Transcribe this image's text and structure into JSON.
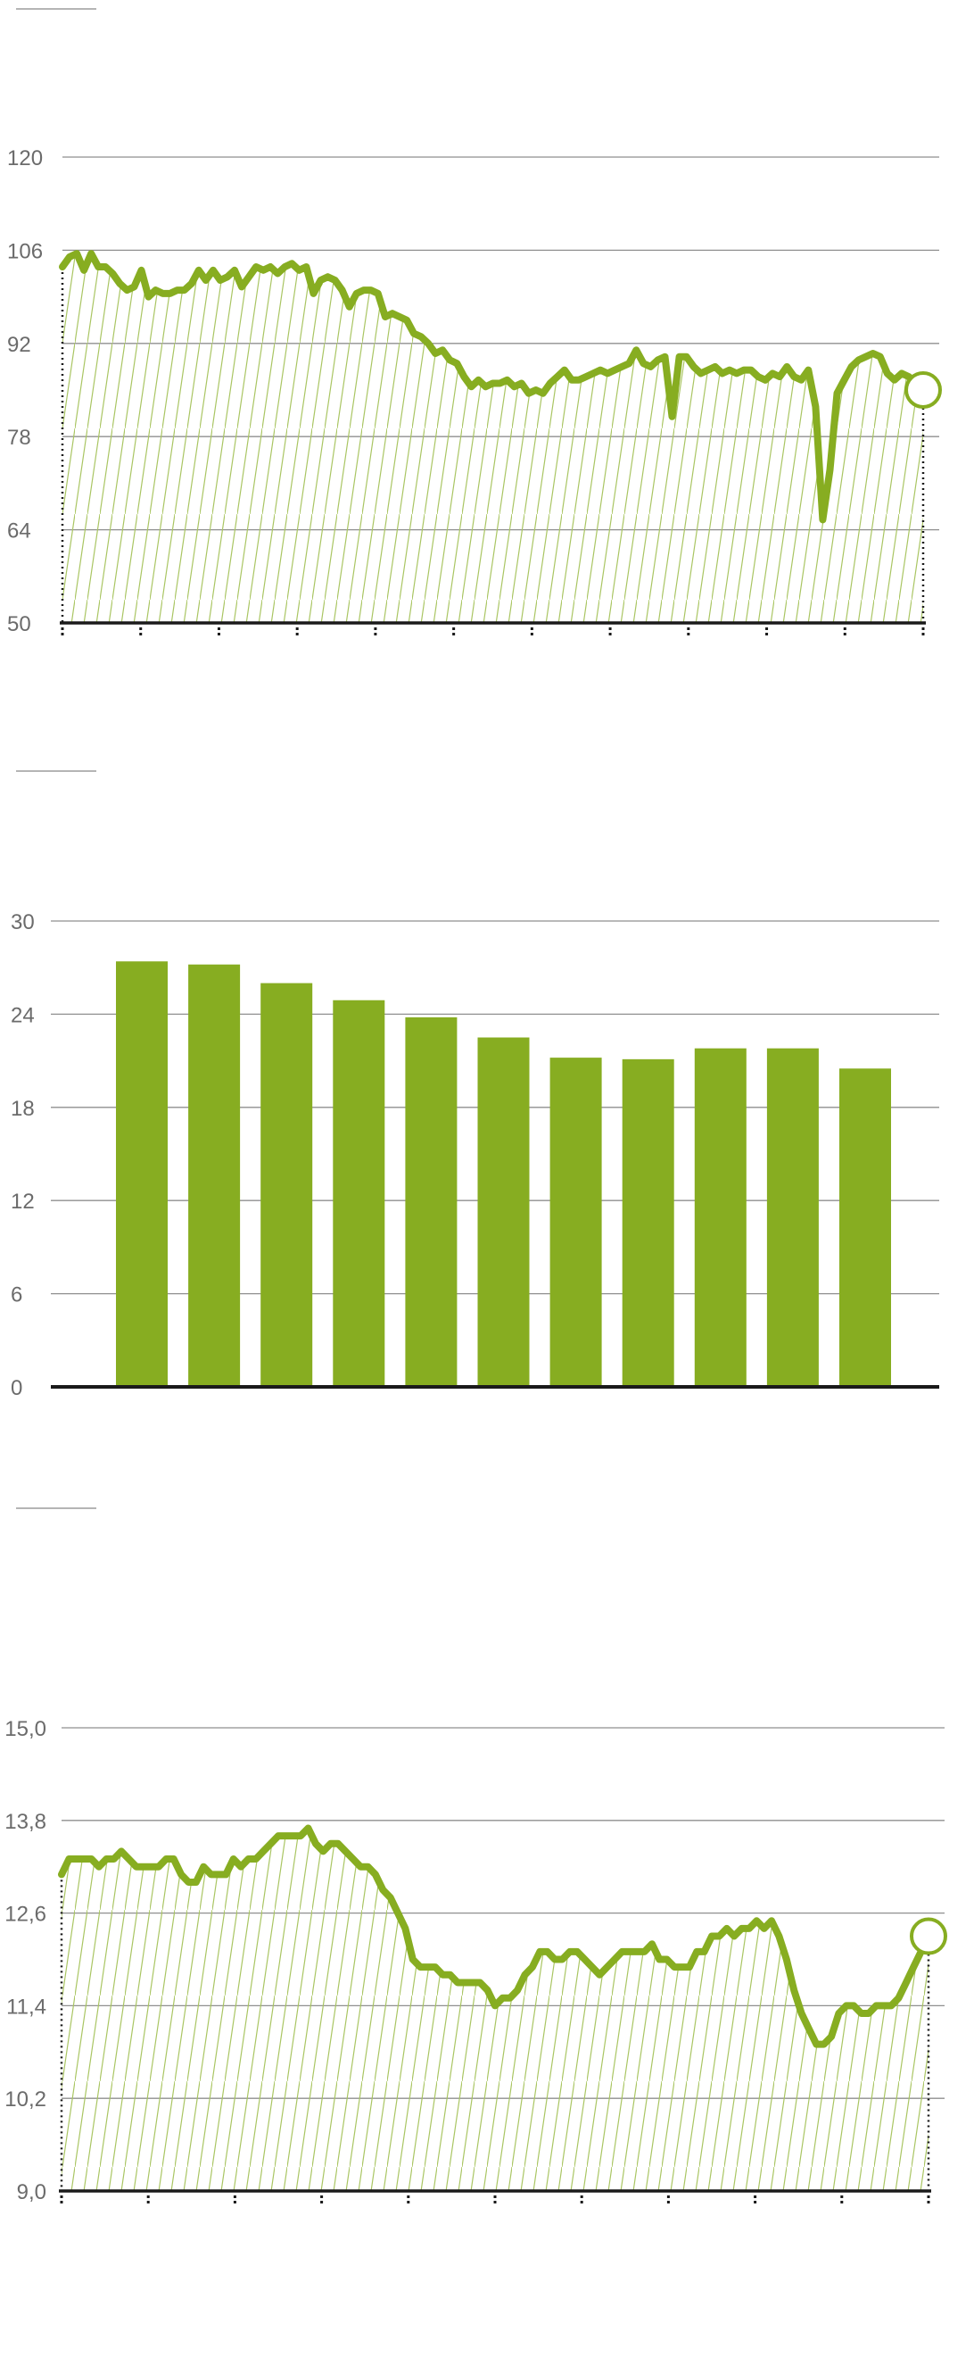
{
  "colors": {
    "series": "#87ad21",
    "hatch": "#a9c562",
    "grid": "#8f8f8f",
    "axis": "#1a1a1a",
    "tick_text": "#6b6b6b",
    "deco_line": "#b5b5b5"
  },
  "chart_data": [
    {
      "type": "area",
      "title": "",
      "xlabel": "",
      "ylabel": "",
      "ylim": [
        50,
        120
      ],
      "y_ticks": [
        "50",
        "64",
        "78",
        "92",
        "106",
        "120"
      ],
      "grid": true,
      "x_tick_count": 12,
      "end_marker": "open-circle",
      "series": [
        {
          "values": [
            103.5,
            105,
            105.5,
            103,
            105.5,
            103.5,
            103.5,
            102.5,
            101,
            100,
            100.5,
            103,
            99,
            100,
            99.5,
            99.5,
            100,
            100,
            101,
            103,
            101.5,
            103,
            101.5,
            102,
            103,
            100.5,
            102,
            103.5,
            103,
            103.5,
            102.5,
            103.5,
            104,
            103,
            103.5,
            99.5,
            101.5,
            102,
            101.5,
            100,
            97.5,
            99.5,
            100,
            100,
            99.5,
            96,
            96.5,
            96,
            95.5,
            93.5,
            93,
            92,
            90.5,
            91,
            89.5,
            89,
            87,
            85.5,
            86.5,
            85.5,
            86,
            86,
            86.5,
            85.5,
            86,
            84.5,
            85,
            84.5,
            86,
            87,
            88,
            86.5,
            86.5,
            87,
            87.5,
            88,
            87.5,
            88,
            88.5,
            89,
            91,
            89,
            88.5,
            89.5,
            90,
            81,
            90,
            90,
            88.5,
            87.5,
            88,
            88.5,
            87.5,
            88,
            87.5,
            88,
            88,
            87,
            86.5,
            87.5,
            87,
            88.5,
            87,
            86.5,
            88,
            82.5,
            65.5,
            73,
            84.5,
            86.5,
            88.5,
            89.5,
            90,
            90.5,
            90,
            87.5,
            86.5,
            87.5,
            87,
            86,
            85
          ]
        }
      ]
    },
    {
      "type": "bar",
      "title": "",
      "xlabel": "",
      "ylabel": "",
      "ylim": [
        0,
        30
      ],
      "y_ticks": [
        "0",
        "6",
        "12",
        "18",
        "24",
        "30"
      ],
      "grid": true,
      "categories": [
        "",
        "",
        "",
        "",
        "",
        "",
        "",
        "",
        "",
        "",
        ""
      ],
      "values": [
        27.4,
        27.2,
        26.0,
        24.9,
        23.8,
        22.5,
        21.2,
        21.1,
        21.8,
        21.8,
        20.5
      ]
    },
    {
      "type": "area",
      "title": "",
      "xlabel": "",
      "ylabel": "",
      "ylim": [
        9.0,
        15.0
      ],
      "y_ticks": [
        "9,0",
        "10,2",
        "11,4",
        "12,6",
        "13,8",
        "15,0"
      ],
      "grid": true,
      "x_tick_count": 11,
      "end_marker": "open-circle",
      "series": [
        {
          "values": [
            13.1,
            13.3,
            13.3,
            13.3,
            13.3,
            13.2,
            13.3,
            13.3,
            13.4,
            13.3,
            13.2,
            13.2,
            13.2,
            13.2,
            13.3,
            13.3,
            13.1,
            13.0,
            13.0,
            13.2,
            13.1,
            13.1,
            13.1,
            13.3,
            13.2,
            13.3,
            13.3,
            13.4,
            13.5,
            13.6,
            13.6,
            13.6,
            13.6,
            13.7,
            13.5,
            13.4,
            13.5,
            13.5,
            13.4,
            13.3,
            13.2,
            13.2,
            13.1,
            12.9,
            12.8,
            12.6,
            12.4,
            12.0,
            11.9,
            11.9,
            11.9,
            11.8,
            11.8,
            11.7,
            11.7,
            11.7,
            11.7,
            11.6,
            11.4,
            11.5,
            11.5,
            11.6,
            11.8,
            11.9,
            12.1,
            12.1,
            12.0,
            12.0,
            12.1,
            12.1,
            12.0,
            11.9,
            11.8,
            11.9,
            12.0,
            12.1,
            12.1,
            12.1,
            12.1,
            12.2,
            12.0,
            12.0,
            11.9,
            11.9,
            11.9,
            12.1,
            12.1,
            12.3,
            12.3,
            12.4,
            12.3,
            12.4,
            12.4,
            12.5,
            12.4,
            12.5,
            12.3,
            12.0,
            11.6,
            11.3,
            11.1,
            10.9,
            10.9,
            11.0,
            11.3,
            11.4,
            11.4,
            11.3,
            11.3,
            11.4,
            11.4,
            11.4,
            11.5,
            11.7,
            11.9,
            12.1,
            12.3
          ]
        }
      ]
    }
  ]
}
